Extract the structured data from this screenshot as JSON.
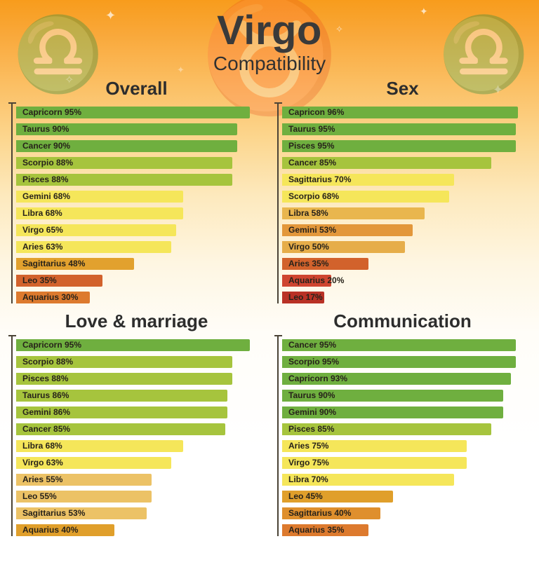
{
  "header": {
    "title": "Virgo",
    "subtitle": "Compatibility"
  },
  "decorations": {
    "scales_left": "♎",
    "scales_right": "♎",
    "bull": "♉",
    "sparkles": [
      "✦",
      "✦",
      "✧",
      "✦",
      "✧",
      "✦"
    ]
  },
  "palette": {
    "green": "#6faf3f",
    "yellow_green": "#a6c43d",
    "yellow": "#f5e65a",
    "pale_orange": "#eaba55",
    "amber": "#e2a12e",
    "orange": "#dd7a2e",
    "dark_orange": "#d2622c",
    "red": "#cf4530",
    "dark_red": "#b93125"
  },
  "chart_data": [
    {
      "type": "bar",
      "orientation": "horizontal",
      "title": "Overall",
      "unit": "%",
      "xlim": [
        0,
        100
      ],
      "categories": [
        "Capricorn",
        "Taurus",
        "Cancer",
        "Scorpio",
        "Pisces",
        "Gemini",
        "Libra",
        "Virgo",
        "Aries",
        "Sagittarius",
        "Leo",
        "Aquarius"
      ],
      "values": [
        95,
        90,
        90,
        88,
        88,
        68,
        68,
        65,
        63,
        48,
        35,
        30
      ],
      "colors": [
        "#6faf3f",
        "#6faf3f",
        "#6faf3f",
        "#a6c43d",
        "#a6c43d",
        "#f5e65a",
        "#f5e65a",
        "#f5e65a",
        "#f5e65a",
        "#e2a12e",
        "#d2622c",
        "#dd7a2e"
      ]
    },
    {
      "type": "bar",
      "orientation": "horizontal",
      "title": "Sex",
      "unit": "%",
      "xlim": [
        0,
        100
      ],
      "categories": [
        "Capricon",
        "Taurus",
        "Pisces",
        "Cancer",
        "Sagittarius",
        "Scorpio",
        "Libra",
        "Gemini",
        "Virgo",
        "Aries",
        "Aquarius",
        "Leo"
      ],
      "values": [
        96,
        95,
        95,
        85,
        70,
        68,
        58,
        53,
        50,
        35,
        20,
        17
      ],
      "colors": [
        "#6faf3f",
        "#6faf3f",
        "#6faf3f",
        "#a6c43d",
        "#f5e65a",
        "#f5e65a",
        "#e9b64e",
        "#e3973a",
        "#e6ad49",
        "#d2622c",
        "#cf4530",
        "#b93125"
      ]
    },
    {
      "type": "bar",
      "orientation": "horizontal",
      "title": "Love & marriage",
      "unit": "%",
      "xlim": [
        0,
        100
      ],
      "categories": [
        "Capricorn",
        "Scorpio",
        "Pisces",
        "Taurus",
        "Gemini",
        "Cancer",
        "Libra",
        "Virgo",
        "Aries",
        "Leo",
        "Sagittarius",
        "Aquarius"
      ],
      "values": [
        95,
        88,
        88,
        86,
        86,
        85,
        68,
        63,
        55,
        55,
        53,
        40
      ],
      "colors": [
        "#6faf3f",
        "#a6c43d",
        "#a6c43d",
        "#a6c43d",
        "#a6c43d",
        "#a6c43d",
        "#f5e65a",
        "#f5e65a",
        "#ecc266",
        "#ecc266",
        "#ecc266",
        "#e09f2b"
      ]
    },
    {
      "type": "bar",
      "orientation": "horizontal",
      "title": "Communication",
      "unit": "%",
      "xlim": [
        0,
        100
      ],
      "categories": [
        "Cancer",
        "Scorpio",
        "Capricorn",
        "Taurus",
        "Gemini",
        "Pisces",
        "Aries",
        "Virgo",
        "Libra",
        "Leo",
        "Sagittarius",
        "Aquarius"
      ],
      "values": [
        95,
        95,
        93,
        90,
        90,
        85,
        75,
        75,
        70,
        45,
        40,
        35
      ],
      "colors": [
        "#6faf3f",
        "#6faf3f",
        "#6faf3f",
        "#6faf3f",
        "#6faf3f",
        "#a6c43d",
        "#f5e65a",
        "#f5e65a",
        "#f5e65a",
        "#e09f2b",
        "#df8f2d",
        "#dd7a2e"
      ]
    }
  ]
}
